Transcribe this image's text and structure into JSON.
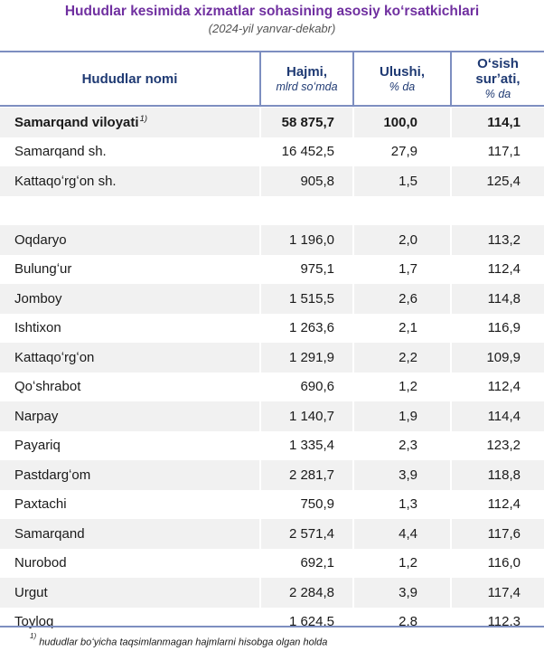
{
  "title": "Hududlar kesimida xizmatlar sohasining asosiy koʻrsatkichlari",
  "subtitle": "(2024-yil yanvar-dekabr)",
  "header": {
    "col1": "Hududlar nomi",
    "col2": "Hajmi,",
    "col2_unit": "mlrd soʻmda",
    "col3": "Ulushi,",
    "col3_unit": "% da",
    "col4_line1": "Oʻsish",
    "col4_line2": "surʼati,",
    "col4_unit": "% da"
  },
  "rows": [
    {
      "name": "Samarqand viloyati",
      "footnote_mark": "1)",
      "volume": "58 875,7",
      "share": "100,0",
      "growth": "114,1",
      "bold": true
    },
    {
      "name": "Samarqand sh.",
      "volume": "16 452,5",
      "share": "27,9",
      "growth": "117,1"
    },
    {
      "name": "Kattaqoʻrgʻon sh.",
      "volume": "905,8",
      "share": "1,5",
      "growth": "125,4"
    },
    {
      "name": "",
      "volume": "",
      "share": "",
      "growth": ""
    },
    {
      "name": "Oqdaryo",
      "volume": "1 196,0",
      "share": "2,0",
      "growth": "113,2"
    },
    {
      "name": "Bulungʻur",
      "volume": "975,1",
      "share": "1,7",
      "growth": "112,4"
    },
    {
      "name": "Jomboy",
      "volume": "1 515,5",
      "share": "2,6",
      "growth": "114,8"
    },
    {
      "name": "Ishtixon",
      "volume": "1 263,6",
      "share": "2,1",
      "growth": "116,9"
    },
    {
      "name": "Kattaqoʻrgʻon",
      "volume": "1 291,9",
      "share": "2,2",
      "growth": "109,9"
    },
    {
      "name": "Qoʻshrabot",
      "volume": "690,6",
      "share": "1,2",
      "growth": "112,4"
    },
    {
      "name": "Narpay",
      "volume": "1 140,7",
      "share": "1,9",
      "growth": "114,4"
    },
    {
      "name": "Payariq",
      "volume": "1 335,4",
      "share": "2,3",
      "growth": "123,2"
    },
    {
      "name": "Pastdargʻom",
      "volume": "2 281,7",
      "share": "3,9",
      "growth": "118,8"
    },
    {
      "name": "Paxtachi",
      "volume": "750,9",
      "share": "1,3",
      "growth": "112,4"
    },
    {
      "name": "Samarqand",
      "volume": "2 571,4",
      "share": "4,4",
      "growth": "117,6"
    },
    {
      "name": "Nurobod",
      "volume": "692,1",
      "share": "1,2",
      "growth": "116,0"
    },
    {
      "name": "Urgut",
      "volume": "2 284,8",
      "share": "3,9",
      "growth": "117,4"
    },
    {
      "name": "Toyloq",
      "volume": "1 624,5",
      "share": "2,8",
      "growth": "112,3"
    }
  ],
  "footnote": {
    "mark": "1)",
    "text": "hududlar boʻyicha taqsimlanmagan hajmlarni hisobga olgan holda"
  }
}
